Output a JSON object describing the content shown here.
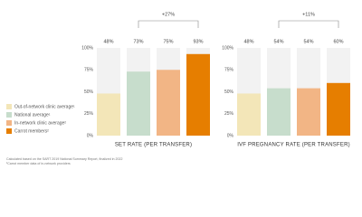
{
  "legend": {
    "items": [
      "Out-of-network clinic average¹",
      "National average¹",
      "In-network clinic average²",
      "Carrot members²"
    ],
    "colors": [
      "#f3e6b8",
      "#c7ddcc",
      "#f2b585",
      "#e67e00"
    ]
  },
  "chart_data": [
    {
      "type": "bar",
      "x_label": "SET RATE (PER TRANSFER)",
      "values": [
        48,
        73,
        75,
        93
      ],
      "value_labels": [
        "48%",
        "73%",
        "75%",
        "93%"
      ],
      "ylim": [
        0,
        100
      ],
      "yticks": [
        {
          "value": 0,
          "label": "0%"
        },
        {
          "value": 25,
          "label": "25%"
        },
        {
          "value": 50,
          "label": "50%"
        },
        {
          "value": 75,
          "label": "75%"
        },
        {
          "value": 100,
          "label": "100%"
        }
      ],
      "annotation": "+27%"
    },
    {
      "type": "bar",
      "x_label": "IVF PREGNANCY RATE (PER TRANSFER)",
      "values": [
        48,
        54,
        54,
        60
      ],
      "value_labels": [
        "48%",
        "54%",
        "54%",
        "60%"
      ],
      "ylim": [
        0,
        100
      ],
      "yticks": [
        {
          "value": 0,
          "label": "0%"
        },
        {
          "value": 25,
          "label": "25%"
        },
        {
          "value": 50,
          "label": "50%"
        },
        {
          "value": 75,
          "label": "75%"
        },
        {
          "value": 100,
          "label": "100%"
        }
      ],
      "annotation": "+11%"
    }
  ],
  "footnotes": [
    "Calculated based on the SART 2019 National Summary Report, finalized in 2022",
    "²Carrot member data of in-network providers"
  ]
}
